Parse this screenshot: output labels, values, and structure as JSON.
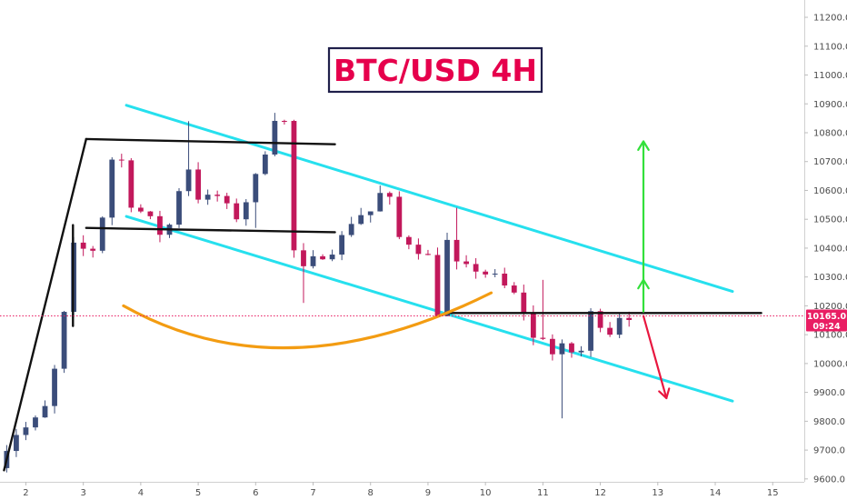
{
  "chart_data": {
    "type": "candlestick",
    "title": "BTC/USD 4H",
    "x_ticks": [
      "2",
      "3",
      "4",
      "5",
      "6",
      "7",
      "8",
      "9",
      "10",
      "11",
      "12",
      "13",
      "14",
      "15"
    ],
    "y_ticks": [
      "9600.0",
      "9700.0",
      "9800.0",
      "9900.0",
      "10000.0",
      "10100.0",
      "10200.0",
      "10300.0",
      "10400.0",
      "10500.0",
      "10600.0",
      "10700.0",
      "10800.0",
      "10900.0",
      "11000.0",
      "11100.0",
      "11200.0"
    ],
    "xlim": [
      1.55,
      15.55
    ],
    "ylim": [
      9590,
      11260
    ],
    "current_price": {
      "value": 10165,
      "label": "10165.0",
      "countdown": "09:24",
      "color": "#e91e63"
    },
    "colors": {
      "up": "#3b4d7a",
      "down": "#c2185b",
      "channel": "#26e0ee",
      "levels": "#111111",
      "arc": "#f39c12",
      "arrow_up": "#33e03b",
      "arrow_down": "#e8173f",
      "title": "#e6004c",
      "title_border": "#1f1f4a"
    },
    "candle_anchors": [
      [
        1.5,
        9610
      ],
      [
        2.0,
        9760
      ],
      [
        2.3,
        9790
      ],
      [
        2.6,
        9870
      ],
      [
        2.78,
        10150
      ],
      [
        2.85,
        10170
      ],
      [
        3.0,
        10400
      ],
      [
        3.3,
        10390
      ],
      [
        3.45,
        10420
      ],
      [
        3.6,
        10700
      ],
      [
        3.8,
        10730
      ],
      [
        4.0,
        10560
      ],
      [
        4.3,
        10500
      ],
      [
        4.6,
        10430
      ],
      [
        4.85,
        10620
      ],
      [
        5.0,
        10680
      ],
      [
        5.2,
        10560
      ],
      [
        5.5,
        10580
      ],
      [
        5.8,
        10500
      ],
      [
        6.1,
        10600
      ],
      [
        6.3,
        10720
      ],
      [
        6.5,
        10860
      ],
      [
        6.7,
        10830
      ],
      [
        6.78,
        10410
      ],
      [
        7.0,
        10320
      ],
      [
        7.3,
        10380
      ],
      [
        7.6,
        10410
      ],
      [
        7.9,
        10520
      ],
      [
        8.15,
        10520
      ],
      [
        8.3,
        10590
      ],
      [
        8.5,
        10560
      ],
      [
        8.6,
        10440
      ],
      [
        8.9,
        10420
      ],
      [
        9.2,
        10360
      ],
      [
        9.35,
        10160
      ],
      [
        9.5,
        10420
      ],
      [
        9.7,
        10320
      ],
      [
        10.0,
        10330
      ],
      [
        10.3,
        10300
      ],
      [
        10.7,
        10230
      ],
      [
        10.85,
        10180
      ],
      [
        10.95,
        10060
      ],
      [
        11.1,
        10130
      ],
      [
        11.25,
        10060
      ],
      [
        11.4,
        10010
      ],
      [
        11.6,
        10090
      ],
      [
        11.75,
        9980
      ],
      [
        12.0,
        10170
      ],
      [
        12.2,
        10140
      ],
      [
        12.4,
        10100
      ],
      [
        12.5,
        10170
      ]
    ],
    "spikes": [
      {
        "x": 4.88,
        "high": 10840
      },
      {
        "x": 6.85,
        "low": 10210
      },
      {
        "x": 9.45,
        "high": 10540
      },
      {
        "x": 11.05,
        "high": 10290
      },
      {
        "x": 11.35,
        "low": 9810
      },
      {
        "x": 6.0,
        "low": 10470
      }
    ],
    "drawings": {
      "channel_upper": [
        [
          3.75,
          10895
        ],
        [
          14.3,
          10250
        ]
      ],
      "channel_lower": [
        [
          3.75,
          10510
        ],
        [
          14.3,
          9870
        ]
      ],
      "resistance_top": [
        [
          3.05,
          10778
        ],
        [
          7.38,
          10760
        ]
      ],
      "support_mid": [
        [
          3.05,
          10470
        ],
        [
          7.38,
          10455
        ]
      ],
      "horizontal_level": [
        [
          9.3,
          10175
        ],
        [
          14.8,
          10175
        ]
      ],
      "trend_outer": [
        [
          1.62,
          9630
        ],
        [
          3.05,
          10778
        ]
      ],
      "trend_inner": [
        [
          2.82,
          10130
        ],
        [
          2.82,
          10480
        ]
      ],
      "arc": [
        [
          3.7,
          10200
        ],
        [
          6.7,
          10055
        ],
        [
          10.1,
          10245
        ]
      ],
      "arrow_up_short": [
        [
          12.75,
          10180
        ],
        [
          12.75,
          10290
        ]
      ],
      "arrow_up_long": [
        [
          12.75,
          10290
        ],
        [
          12.75,
          10770
        ]
      ],
      "arrow_down": [
        [
          12.75,
          10165
        ],
        [
          13.15,
          9880
        ]
      ]
    }
  }
}
